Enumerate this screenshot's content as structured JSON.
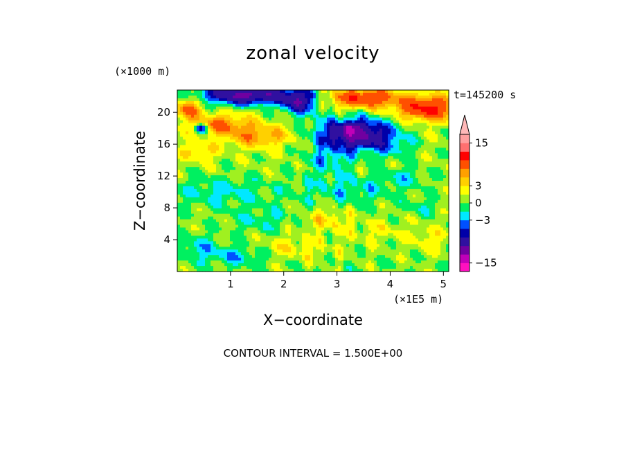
{
  "chart_data": {
    "type": "heatmap",
    "title": "zonal velocity",
    "xlabel": "X−coordinate",
    "ylabel": "Z−coordinate",
    "x_unit": "(×1E5 m)",
    "y_unit": "(×1000 m)",
    "time_label": "t=145200 s",
    "contour_interval_text": "CONTOUR INTERVAL = 1.500E+00",
    "xlim": [
      0,
      5.1
    ],
    "ylim": [
      0,
      22.8
    ],
    "x_ticks": [
      1,
      2,
      3,
      4,
      5
    ],
    "y_ticks": [
      4,
      8,
      12,
      16,
      20
    ],
    "colorbar": {
      "labels": [
        "15",
        "3",
        "0",
        "−3",
        "−15"
      ],
      "label_values": [
        15,
        3,
        0,
        -3,
        -15
      ],
      "levels": [
        -18,
        -15,
        -12,
        -9,
        -6,
        -4.5,
        -3,
        -1.5,
        0,
        1.5,
        3,
        4.5,
        6,
        9,
        12,
        15,
        18
      ],
      "colors": [
        "#ff10c0",
        "#c000b8",
        "#7000a0",
        "#3010a0",
        "#0000a8",
        "#0050ff",
        "#00e8ff",
        "#00f060",
        "#a0f020",
        "#ffff00",
        "#ffd000",
        "#ffa000",
        "#ff5000",
        "#ff0000",
        "#ff7070",
        "#ffa0a0",
        "#ffb8b8"
      ],
      "extend": "max"
    },
    "features": [
      {
        "x": 1.3,
        "z": 22.2,
        "sx": 0.85,
        "sz": 1.2,
        "v": -11
      },
      {
        "x": 2.3,
        "z": 21.3,
        "sx": 0.35,
        "sz": 1.6,
        "v": -8
      },
      {
        "x": 3.35,
        "z": 17.2,
        "sx": 0.7,
        "sz": 2.0,
        "v": -11
      },
      {
        "x": 3.25,
        "z": 18.0,
        "sx": 0.18,
        "sz": 0.6,
        "v": -4
      },
      {
        "x": 0.45,
        "z": 18.0,
        "sx": 0.12,
        "sz": 0.6,
        "v": -8
      },
      {
        "x": 3.5,
        "z": 21.8,
        "sx": 0.65,
        "sz": 1.2,
        "v": 8
      },
      {
        "x": 4.7,
        "z": 20.5,
        "sx": 0.55,
        "sz": 1.5,
        "v": 9
      },
      {
        "x": 0.8,
        "z": 18.5,
        "sx": 0.55,
        "sz": 1.2,
        "v": 5
      },
      {
        "x": 1.5,
        "z": 17.0,
        "sx": 0.65,
        "sz": 1.4,
        "v": 4.5
      },
      {
        "x": 0.2,
        "z": 20.5,
        "sx": 0.25,
        "sz": 1.2,
        "v": 6
      },
      {
        "x": 0.4,
        "z": 15.0,
        "sx": 0.3,
        "sz": 1.0,
        "v": 3
      },
      {
        "x": 4.1,
        "z": 15.5,
        "sx": 0.35,
        "sz": 1.2,
        "v": -2
      },
      {
        "x": 4.3,
        "z": 12.0,
        "sx": 0.35,
        "sz": 1.2,
        "v": -2
      },
      {
        "x": 4.6,
        "z": 8.0,
        "sx": 0.3,
        "sz": 1.0,
        "v": -1.8
      },
      {
        "x": 0.8,
        "z": 10.0,
        "sx": 0.9,
        "sz": 1.8,
        "v": -2.5
      },
      {
        "x": 3.2,
        "z": 10.5,
        "sx": 1.0,
        "sz": 2.0,
        "v": -2.5
      },
      {
        "x": 1.6,
        "z": 6.5,
        "sx": 0.55,
        "sz": 1.5,
        "v": -2
      },
      {
        "x": 3.8,
        "z": 5.0,
        "sx": 0.6,
        "sz": 1.5,
        "v": 1.5
      },
      {
        "x": 2.2,
        "z": 3.0,
        "sx": 0.7,
        "sz": 1.5,
        "v": 2
      },
      {
        "x": 1.1,
        "z": 2.0,
        "sx": 0.5,
        "sz": 1.2,
        "v": -3
      },
      {
        "x": 0.4,
        "z": 3.0,
        "sx": 0.35,
        "sz": 1.5,
        "v": -2.5
      },
      {
        "x": 2.8,
        "z": 6.5,
        "sx": 0.4,
        "sz": 1.5,
        "v": 2.5
      },
      {
        "x": 2.8,
        "z": 14.0,
        "sx": 0.4,
        "sz": 1.5,
        "v": -3
      },
      {
        "x": 4.75,
        "z": 4.0,
        "sx": 0.35,
        "sz": 1.5,
        "v": 2
      }
    ]
  }
}
